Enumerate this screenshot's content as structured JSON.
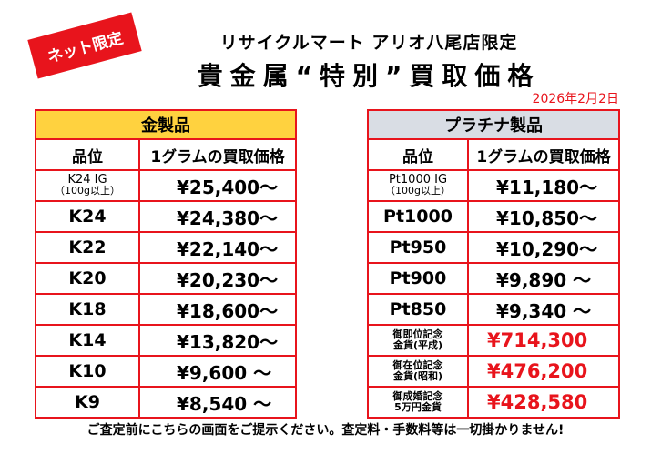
{
  "badge": "ネット限定",
  "store_line": "リサイクルマート アリオ八尾店限定",
  "headline": "貴金属“特別”買取価格",
  "date": "2026年2月2日",
  "gold": {
    "header": "金製品",
    "col_grade": "品位",
    "col_price": "1グラムの買取価格",
    "rows": [
      {
        "grade": "K24 IG",
        "grade_sub": "（100g以上）",
        "price": "¥25,400～"
      },
      {
        "grade": "K24",
        "price": "¥24,380～"
      },
      {
        "grade": "K22",
        "price": "¥22,140～"
      },
      {
        "grade": "K20",
        "price": "¥20,230～"
      },
      {
        "grade": "K18",
        "price": "¥18,600～"
      },
      {
        "grade": "K14",
        "price": "¥13,820～"
      },
      {
        "grade": "K10",
        "price": "¥9,600 ～"
      },
      {
        "grade": "K9",
        "price": "¥8,540 ～"
      }
    ]
  },
  "platinum": {
    "header": "プラチナ製品",
    "col_grade": "品位",
    "col_price": "1グラムの買取価格",
    "rows": [
      {
        "grade": "Pt1000 IG",
        "grade_sub": "（100g以上）",
        "price": "¥11,180～"
      },
      {
        "grade": "Pt1000",
        "price": "¥10,850～"
      },
      {
        "grade": "Pt950",
        "price": "¥10,290～"
      },
      {
        "grade": "Pt900",
        "price": "¥9,890 ～"
      },
      {
        "grade": "Pt850",
        "price": "¥9,340 ～"
      }
    ],
    "coins": [
      {
        "line1": "御即位記念",
        "line2": "金貨(平成)",
        "price": "¥714,300"
      },
      {
        "line1": "御在位記念",
        "line2": "金貨(昭和)",
        "price": "¥476,200"
      },
      {
        "line1": "御成婚記念",
        "line2": "5万円金貨",
        "price": "¥428,580"
      }
    ]
  },
  "footer": "ご査定前にこちらの画面をご提示ください。査定料・手数料等は一切掛かりません!"
}
